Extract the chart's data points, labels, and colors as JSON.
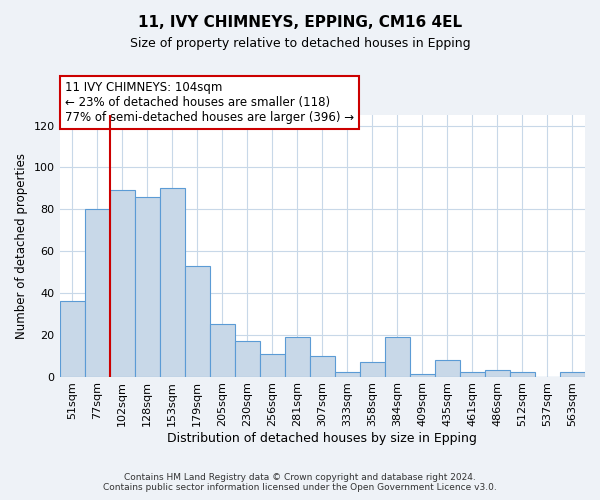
{
  "title": "11, IVY CHIMNEYS, EPPING, CM16 4EL",
  "subtitle": "Size of property relative to detached houses in Epping",
  "xlabel": "Distribution of detached houses by size in Epping",
  "ylabel": "Number of detached properties",
  "bar_labels": [
    "51sqm",
    "77sqm",
    "102sqm",
    "128sqm",
    "153sqm",
    "179sqm",
    "205sqm",
    "230sqm",
    "256sqm",
    "281sqm",
    "307sqm",
    "333sqm",
    "358sqm",
    "384sqm",
    "409sqm",
    "435sqm",
    "461sqm",
    "486sqm",
    "512sqm",
    "537sqm",
    "563sqm"
  ],
  "bar_heights": [
    36,
    80,
    89,
    86,
    90,
    53,
    25,
    17,
    11,
    19,
    10,
    2,
    7,
    19,
    1,
    8,
    2,
    3,
    2,
    0,
    2
  ],
  "bar_color": "#c8d8e8",
  "bar_edge_color": "#5b9bd5",
  "vline_bar_index": 2,
  "vline_color": "#cc0000",
  "annotation_text": "11 IVY CHIMNEYS: 104sqm\n← 23% of detached houses are smaller (118)\n77% of semi-detached houses are larger (396) →",
  "annotation_box_color": "#ffffff",
  "annotation_box_edge_color": "#cc0000",
  "ylim": [
    0,
    125
  ],
  "yticks": [
    0,
    20,
    40,
    60,
    80,
    100,
    120
  ],
  "footnote": "Contains HM Land Registry data © Crown copyright and database right 2024.\nContains public sector information licensed under the Open Government Licence v3.0.",
  "background_color": "#eef2f7",
  "plot_background_color": "#ffffff",
  "grid_color": "#c8d8e8"
}
